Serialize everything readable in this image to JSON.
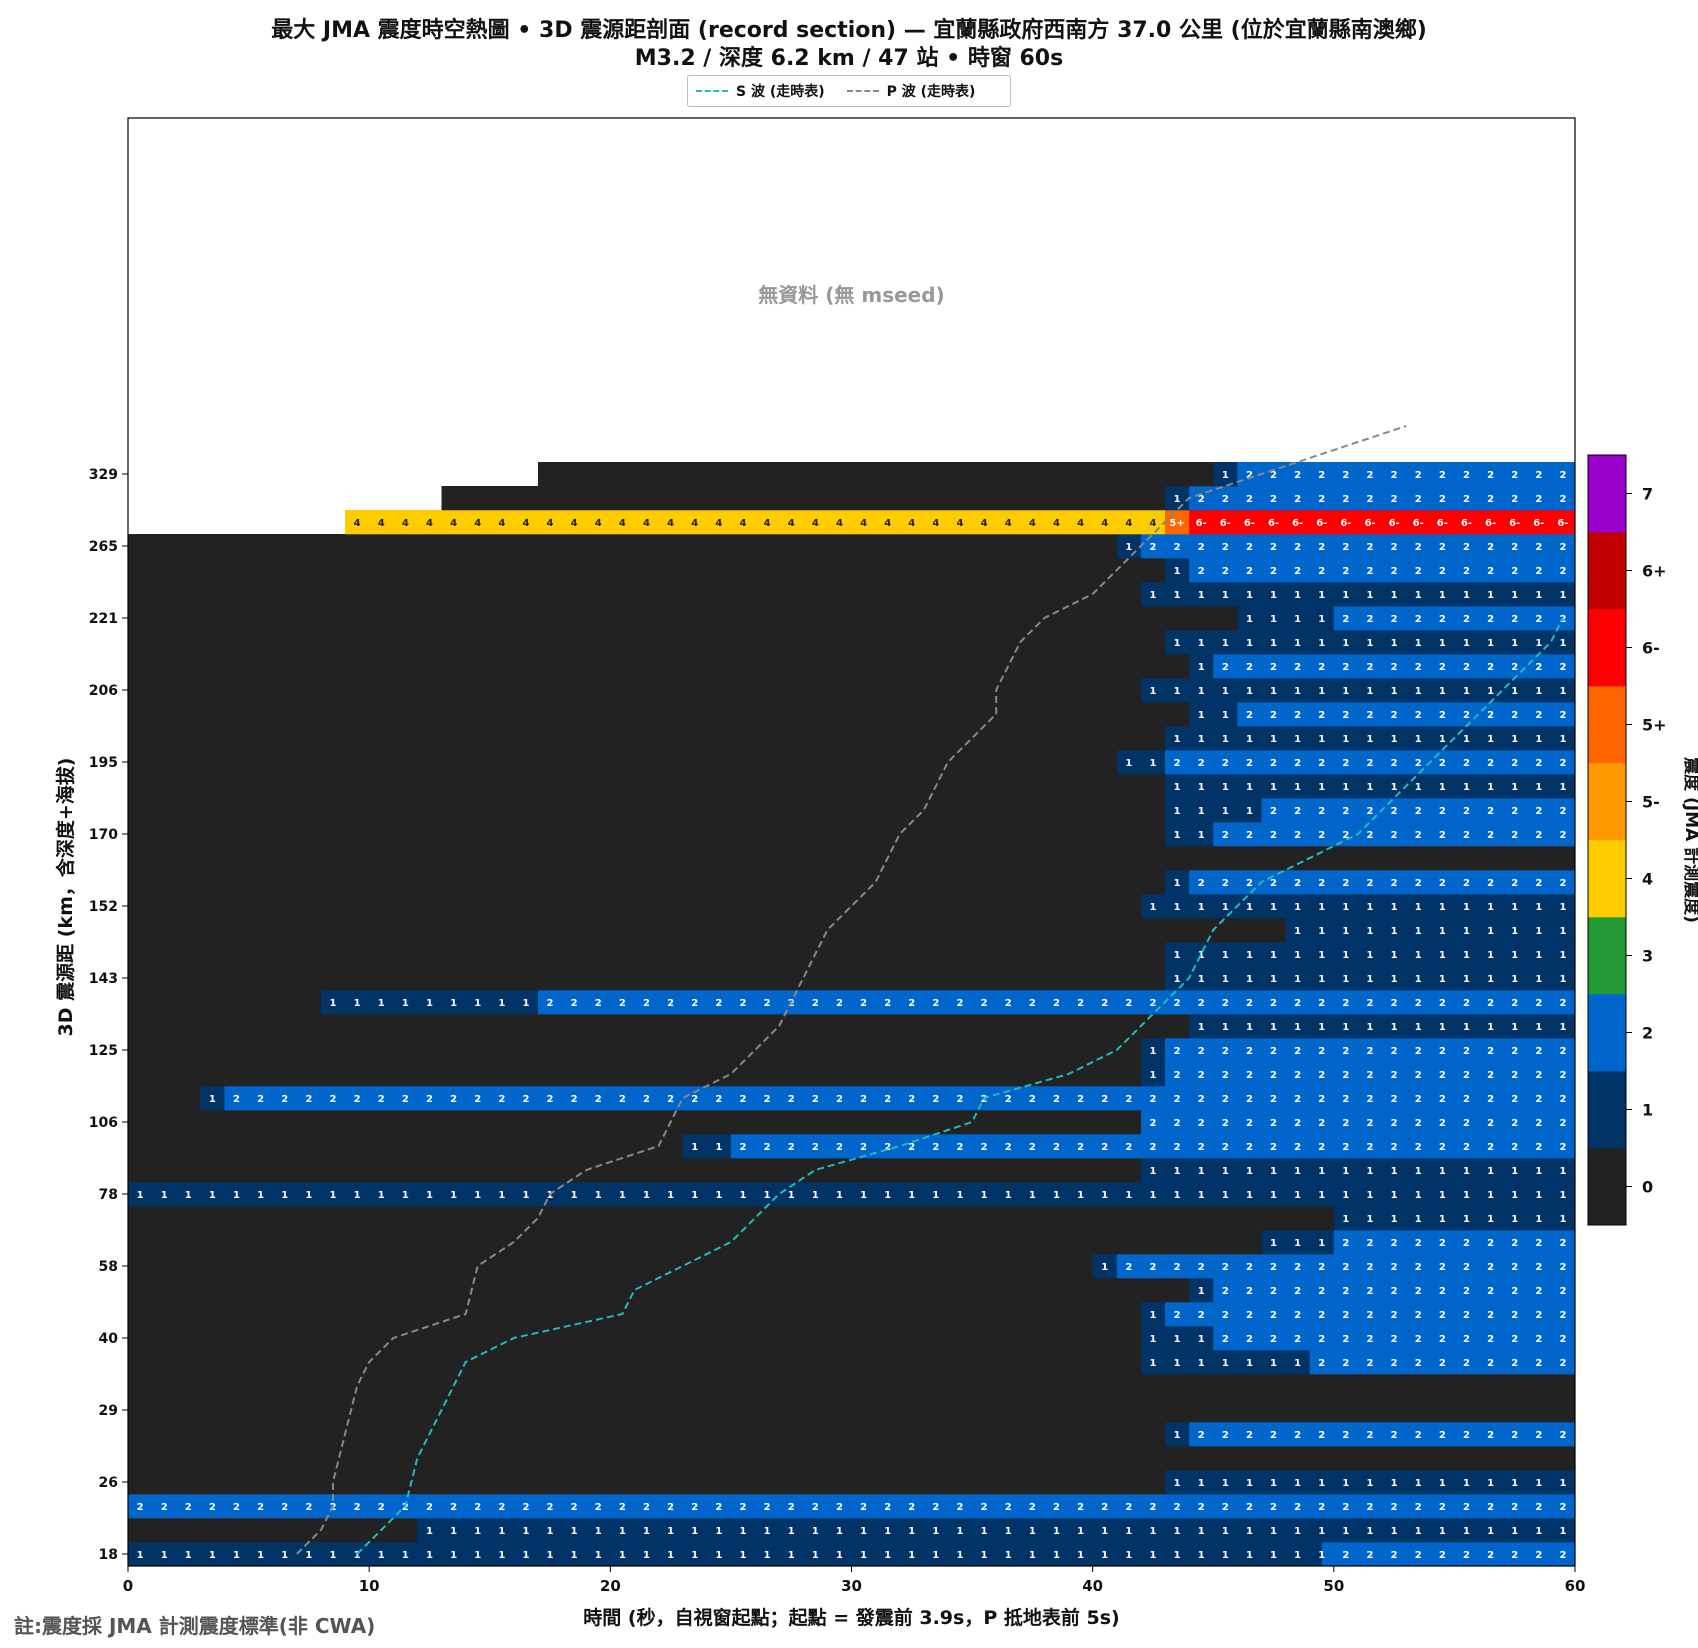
{
  "titles": {
    "line1": "最大 JMA 震度時空熱圖 • 3D 震源距剖面 (record section) — 宜蘭縣政府西南方  37.0  公里 (位於宜蘭縣南澳鄉)",
    "line2": "M3.2 / 深度 6.2 km / 47 站 • 時窗 60s"
  },
  "footnote": "註:震度採 JMA 計測震度標準(非 CWA)",
  "chart_data": {
    "type": "heatmap",
    "title": "最大 JMA 震度時空熱圖 • 3D 震源距剖面 (record section) — 宜蘭縣政府西南方  37.0  公里 (位於宜蘭縣南澳鄉)",
    "subtitle": "M3.2 / 深度 6.2 km / 47 站 • 時窗 60s",
    "xlabel": "時間 (秒，自視窗起點；起點 = 發震前 3.9s，P 抵地表前 5s)",
    "ylabel": "3D 震源距 (km，含深度+海拔)",
    "xlim": [
      0,
      60
    ],
    "x_ticks": [
      0,
      10,
      20,
      30,
      40,
      50,
      60
    ],
    "y_tick_labels": [
      "18",
      "26",
      "29",
      "40",
      "58",
      "78",
      "106",
      "125",
      "143",
      "152",
      "170",
      "195",
      "206",
      "221",
      "265",
      "329"
    ],
    "rows_total": 47,
    "no_data_label": "無資料 (無 mseed)",
    "legend_position": "top-center",
    "grid": false,
    "colorbar": {
      "label": "震度 (JMA 計測震度)",
      "levels": [
        {
          "label": "0",
          "color": "#222222"
        },
        {
          "label": "1",
          "color": "#003366"
        },
        {
          "label": "2",
          "color": "#0066cc"
        },
        {
          "label": "3",
          "color": "#229933"
        },
        {
          "label": "4",
          "color": "#ffcc00"
        },
        {
          "label": "5-",
          "color": "#ff9900"
        },
        {
          "label": "5+",
          "color": "#ff6600"
        },
        {
          "label": "6-",
          "color": "#ff0000"
        },
        {
          "label": "6+",
          "color": "#c00000"
        },
        {
          "label": "7",
          "color": "#9900cc"
        }
      ]
    },
    "series": [
      {
        "name": "S 波 (走時表)",
        "color": "#22bbbb",
        "points": [
          [
            9.5,
            0
          ],
          [
            10.5,
            1
          ],
          [
            11.5,
            2
          ],
          [
            12,
            4
          ],
          [
            12.5,
            5
          ],
          [
            13,
            6
          ],
          [
            14,
            8
          ],
          [
            16,
            9
          ],
          [
            20.5,
            10
          ],
          [
            21,
            11
          ],
          [
            25,
            13
          ],
          [
            26,
            14
          ],
          [
            27,
            15
          ],
          [
            28.5,
            16
          ],
          [
            32,
            17
          ],
          [
            35,
            18
          ],
          [
            35.5,
            19
          ],
          [
            39,
            20
          ],
          [
            41,
            21
          ],
          [
            42,
            22
          ],
          [
            44,
            24
          ],
          [
            45,
            26
          ],
          [
            47,
            28
          ],
          [
            51,
            30
          ],
          [
            53,
            32
          ],
          [
            55,
            34
          ],
          [
            56,
            35
          ],
          [
            57,
            36
          ],
          [
            58,
            37
          ],
          [
            59,
            38
          ],
          [
            59.5,
            39
          ]
        ]
      },
      {
        "name": "P 波 (走時表)",
        "color": "#888888",
        "points": [
          [
            7,
            0
          ],
          [
            8,
            1
          ],
          [
            8.5,
            2
          ],
          [
            8.5,
            3
          ],
          [
            9,
            5
          ],
          [
            9.5,
            7
          ],
          [
            10,
            8
          ],
          [
            11,
            9
          ],
          [
            14,
            10
          ],
          [
            14.5,
            12
          ],
          [
            16,
            13
          ],
          [
            17,
            14
          ],
          [
            17.5,
            15
          ],
          [
            19,
            16
          ],
          [
            22,
            17
          ],
          [
            22.5,
            18
          ],
          [
            23,
            19
          ],
          [
            25,
            20
          ],
          [
            26,
            21
          ],
          [
            27,
            22
          ],
          [
            28,
            24
          ],
          [
            29,
            26
          ],
          [
            30,
            27
          ],
          [
            31,
            28
          ],
          [
            32,
            30
          ],
          [
            33,
            31
          ],
          [
            34,
            33
          ],
          [
            35,
            34
          ],
          [
            36,
            35
          ],
          [
            36,
            36
          ],
          [
            37,
            38
          ],
          [
            38,
            39
          ],
          [
            40,
            40
          ],
          [
            41,
            41
          ],
          [
            42,
            42
          ],
          [
            43,
            43
          ],
          [
            44,
            44
          ],
          [
            47,
            45
          ],
          [
            50,
            46
          ],
          [
            53,
            47
          ]
        ]
      }
    ],
    "rows": [
      {
        "segments": [
          [
            10.5,
            1
          ],
          [
            49.5,
            1
          ],
          [
            60,
            2
          ]
        ]
      },
      {
        "segments": [
          [
            12,
            0
          ],
          [
            60,
            1
          ]
        ]
      },
      {
        "segments": [
          [
            60,
            2
          ]
        ]
      },
      {
        "segments": [
          [
            43,
            0
          ],
          [
            60,
            1
          ]
        ]
      },
      {
        "segments": [
          [
            60,
            0
          ]
        ]
      },
      {
        "segments": [
          [
            43,
            0
          ],
          [
            44,
            1
          ],
          [
            60,
            2
          ]
        ]
      },
      {
        "segments": [
          [
            60,
            0
          ]
        ]
      },
      {
        "segments": [
          [
            60,
            0
          ]
        ]
      },
      {
        "segments": [
          [
            42,
            0
          ],
          [
            49,
            1
          ],
          [
            60,
            2
          ]
        ]
      },
      {
        "segments": [
          [
            42,
            0
          ],
          [
            45,
            1
          ],
          [
            60,
            2
          ]
        ]
      },
      {
        "segments": [
          [
            42,
            0
          ],
          [
            43,
            1
          ],
          [
            60,
            2
          ]
        ]
      },
      {
        "segments": [
          [
            44,
            0
          ],
          [
            45,
            1
          ],
          [
            60,
            2
          ]
        ]
      },
      {
        "segments": [
          [
            40,
            0
          ],
          [
            41,
            1
          ],
          [
            60,
            2
          ]
        ]
      },
      {
        "segments": [
          [
            47,
            0
          ],
          [
            50,
            1
          ],
          [
            60,
            2
          ]
        ]
      },
      {
        "segments": [
          [
            50,
            0
          ],
          [
            60,
            1
          ]
        ]
      },
      {
        "segments": [
          [
            60,
            1
          ]
        ]
      },
      {
        "segments": [
          [
            42,
            0
          ],
          [
            60,
            1
          ]
        ]
      },
      {
        "segments": [
          [
            23,
            0
          ],
          [
            25,
            1
          ],
          [
            60,
            2
          ]
        ]
      },
      {
        "segments": [
          [
            42,
            0
          ],
          [
            60,
            2
          ]
        ]
      },
      {
        "segments": [
          [
            3,
            0
          ],
          [
            4,
            1
          ],
          [
            60,
            2
          ]
        ]
      },
      {
        "segments": [
          [
            42,
            0
          ],
          [
            43,
            1
          ],
          [
            60,
            2
          ]
        ]
      },
      {
        "segments": [
          [
            42,
            0
          ],
          [
            43,
            1
          ],
          [
            60,
            2
          ]
        ]
      },
      {
        "segments": [
          [
            44,
            0
          ],
          [
            60,
            1
          ]
        ]
      },
      {
        "segments": [
          [
            8,
            0
          ],
          [
            17,
            1
          ],
          [
            60,
            2
          ]
        ]
      },
      {
        "segments": [
          [
            43,
            0
          ],
          [
            60,
            1
          ]
        ]
      },
      {
        "segments": [
          [
            43,
            0
          ],
          [
            60,
            1
          ]
        ]
      },
      {
        "segments": [
          [
            48,
            0
          ],
          [
            60,
            1
          ]
        ]
      },
      {
        "segments": [
          [
            42,
            0
          ],
          [
            60,
            1
          ]
        ]
      },
      {
        "segments": [
          [
            43,
            0
          ],
          [
            44,
            1
          ],
          [
            60,
            2
          ]
        ]
      },
      {
        "segments": [
          [
            60,
            0
          ]
        ]
      },
      {
        "segments": [
          [
            43,
            0
          ],
          [
            45,
            1
          ],
          [
            60,
            2
          ]
        ]
      },
      {
        "segments": [
          [
            43,
            0
          ],
          [
            47,
            1
          ],
          [
            60,
            2
          ]
        ]
      },
      {
        "segments": [
          [
            43,
            0
          ],
          [
            60,
            1
          ]
        ]
      },
      {
        "segments": [
          [
            41,
            0
          ],
          [
            43,
            1
          ],
          [
            60,
            2
          ]
        ]
      },
      {
        "segments": [
          [
            43,
            0
          ],
          [
            60,
            1
          ]
        ]
      },
      {
        "segments": [
          [
            44,
            0
          ],
          [
            46,
            1
          ],
          [
            60,
            2
          ]
        ]
      },
      {
        "segments": [
          [
            42,
            0
          ],
          [
            60,
            1
          ]
        ]
      },
      {
        "segments": [
          [
            44,
            0
          ],
          [
            45,
            1
          ],
          [
            60,
            2
          ]
        ]
      },
      {
        "segments": [
          [
            43,
            0
          ],
          [
            60,
            1
          ]
        ]
      },
      {
        "segments": [
          [
            46,
            0
          ],
          [
            50,
            1
          ],
          [
            60,
            2
          ]
        ]
      },
      {
        "segments": [
          [
            42,
            0
          ],
          [
            60,
            1
          ]
        ]
      },
      {
        "segments": [
          [
            43,
            0
          ],
          [
            44,
            1
          ],
          [
            60,
            2
          ]
        ]
      },
      {
        "segments": [
          [
            41,
            0
          ],
          [
            42,
            1
          ],
          [
            60,
            2
          ]
        ]
      },
      {
        "segments": [
          [
            9,
            null
          ],
          [
            43,
            4
          ],
          [
            44,
            6
          ],
          [
            60,
            7
          ]
        ]
      },
      {
        "segments": [
          [
            13,
            null
          ],
          [
            43,
            0
          ],
          [
            44,
            1
          ],
          [
            60,
            2
          ]
        ]
      },
      {
        "segments": [
          [
            17,
            null
          ],
          [
            45,
            0
          ],
          [
            46,
            1
          ],
          [
            60,
            2
          ]
        ]
      },
      {
        "segments": [
          [
            60,
            null
          ]
        ]
      }
    ]
  }
}
